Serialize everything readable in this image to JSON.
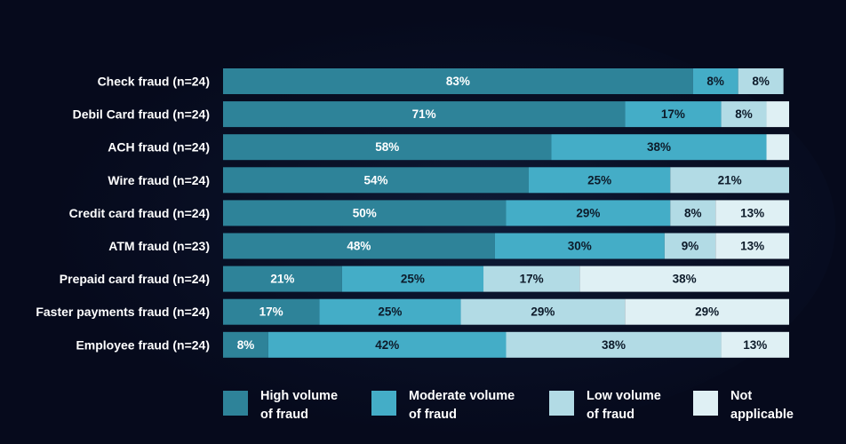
{
  "chart_data": {
    "type": "bar",
    "orientation": "horizontal",
    "stacked": true,
    "title": "",
    "xlabel": "",
    "ylabel": "",
    "xlim": [
      0,
      100
    ],
    "grid": false,
    "legend_position": "bottom",
    "categories": [
      "Check fraud (n=24)",
      "Debil Card fraud (n=24)",
      "ACH fraud (n=24)",
      "Wire fraud (n=24)",
      "Credit card fraud (n=24)",
      "ATM fraud (n=23)",
      "Prepaid card fraud (n=24)",
      "Faster payments fraud (n=24)",
      "Employee fraud (n=24)"
    ],
    "series": [
      {
        "name": "High volume\nof fraud",
        "color": "#2e8399",
        "values": [
          83,
          71,
          58,
          54,
          50,
          48,
          21,
          17,
          8
        ],
        "labels": [
          "83%",
          "71%",
          "58%",
          "54%",
          "50%",
          "48%",
          "21%",
          "17%",
          "8%"
        ]
      },
      {
        "name": "Moderate volume\nof fraud",
        "color": "#44adc7",
        "values": [
          8,
          17,
          38,
          25,
          29,
          30,
          25,
          25,
          42
        ],
        "labels": [
          "8%",
          "17%",
          "38%",
          "25%",
          "29%",
          "30%",
          "25%",
          "25%",
          "42%"
        ]
      },
      {
        "name": "Low volume\nof fraud",
        "color": "#b2dbe5",
        "values": [
          8,
          8,
          0,
          21,
          8,
          9,
          17,
          29,
          38
        ],
        "labels": [
          "8%",
          "8%",
          "",
          "21%",
          "8%",
          "9%",
          "17%",
          "29%",
          "38%"
        ]
      },
      {
        "name": "Not\napplicable",
        "color": "#dff0f4",
        "values": [
          0,
          4,
          4,
          0,
          13,
          13,
          38,
          29,
          13
        ],
        "labels": [
          "",
          "",
          "",
          "",
          "13%",
          "13%",
          "38%",
          "29%",
          "13%"
        ]
      }
    ]
  }
}
